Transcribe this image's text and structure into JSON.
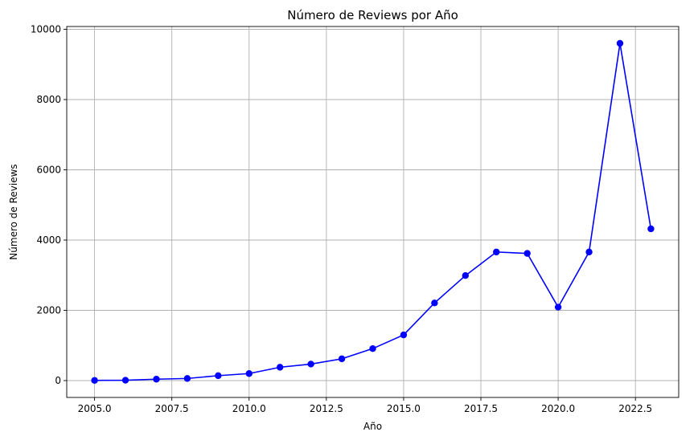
{
  "chart_data": {
    "type": "line",
    "title": "Número de Reviews por Año",
    "xlabel": "Año",
    "ylabel": "Número de Reviews",
    "xlim": [
      2004.1,
      2023.9
    ],
    "ylim": [
      -480,
      10080
    ],
    "xticks": [
      2005.0,
      2007.5,
      2010.0,
      2012.5,
      2015.0,
      2017.5,
      2020.0,
      2022.5
    ],
    "xtick_labels": [
      "2005.0",
      "2007.5",
      "2010.0",
      "2012.5",
      "2015.0",
      "2017.5",
      "2020.0",
      "2022.5"
    ],
    "yticks": [
      0,
      2000,
      4000,
      6000,
      8000,
      10000
    ],
    "ytick_labels": [
      "0",
      "2000",
      "4000",
      "6000",
      "8000",
      "10000"
    ],
    "grid": true,
    "legend": "none",
    "series": [
      {
        "color": "#0000ff",
        "marker": "circle",
        "x": [
          2005,
          2006,
          2007,
          2008,
          2009,
          2010,
          2011,
          2012,
          2013,
          2014,
          2015,
          2016,
          2017,
          2018,
          2019,
          2020,
          2021,
          2022,
          2023
        ],
        "y": [
          5,
          10,
          40,
          60,
          140,
          200,
          380,
          470,
          620,
          910,
          1300,
          2210,
          2990,
          3660,
          3620,
          2090,
          3660,
          9600,
          4320
        ]
      }
    ]
  }
}
